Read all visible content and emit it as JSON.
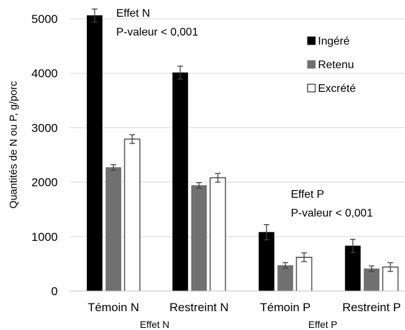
{
  "chart_data": {
    "type": "bar",
    "ylabel": "Quantités de N ou P, g/porc",
    "xlabel": "",
    "ylim": [
      0,
      5000
    ],
    "yticks": [
      0,
      1000,
      2000,
      3000,
      4000,
      5000
    ],
    "grid": true,
    "legend_position": "top-right",
    "categories": [
      "Témoin N",
      "Restreint N",
      "Témoin P",
      "Restreint P"
    ],
    "series": [
      {
        "name": "Ingéré",
        "color": "#000000",
        "values": [
          5060,
          4010,
          1080,
          830
        ],
        "errors": [
          120,
          120,
          140,
          120
        ]
      },
      {
        "name": "Retenu",
        "color": "#707070",
        "values": [
          2270,
          1940,
          470,
          410
        ],
        "errors": [
          50,
          50,
          50,
          50
        ]
      },
      {
        "name": "Excrété",
        "color": "#ffffff",
        "values": [
          2790,
          2080,
          620,
          440
        ],
        "errors": [
          80,
          80,
          80,
          80
        ]
      }
    ],
    "annotations": [
      {
        "id": "effet-n-title",
        "text": "Effet N"
      },
      {
        "id": "effet-n-pvalue",
        "text": "P-valeur < 0,001"
      },
      {
        "id": "effet-p-title",
        "text": "Effet P"
      },
      {
        "id": "effet-p-pvalue",
        "text": "P-valeur < 0,001"
      }
    ],
    "group_labels": [
      "Effet N",
      "Effet P"
    ]
  }
}
